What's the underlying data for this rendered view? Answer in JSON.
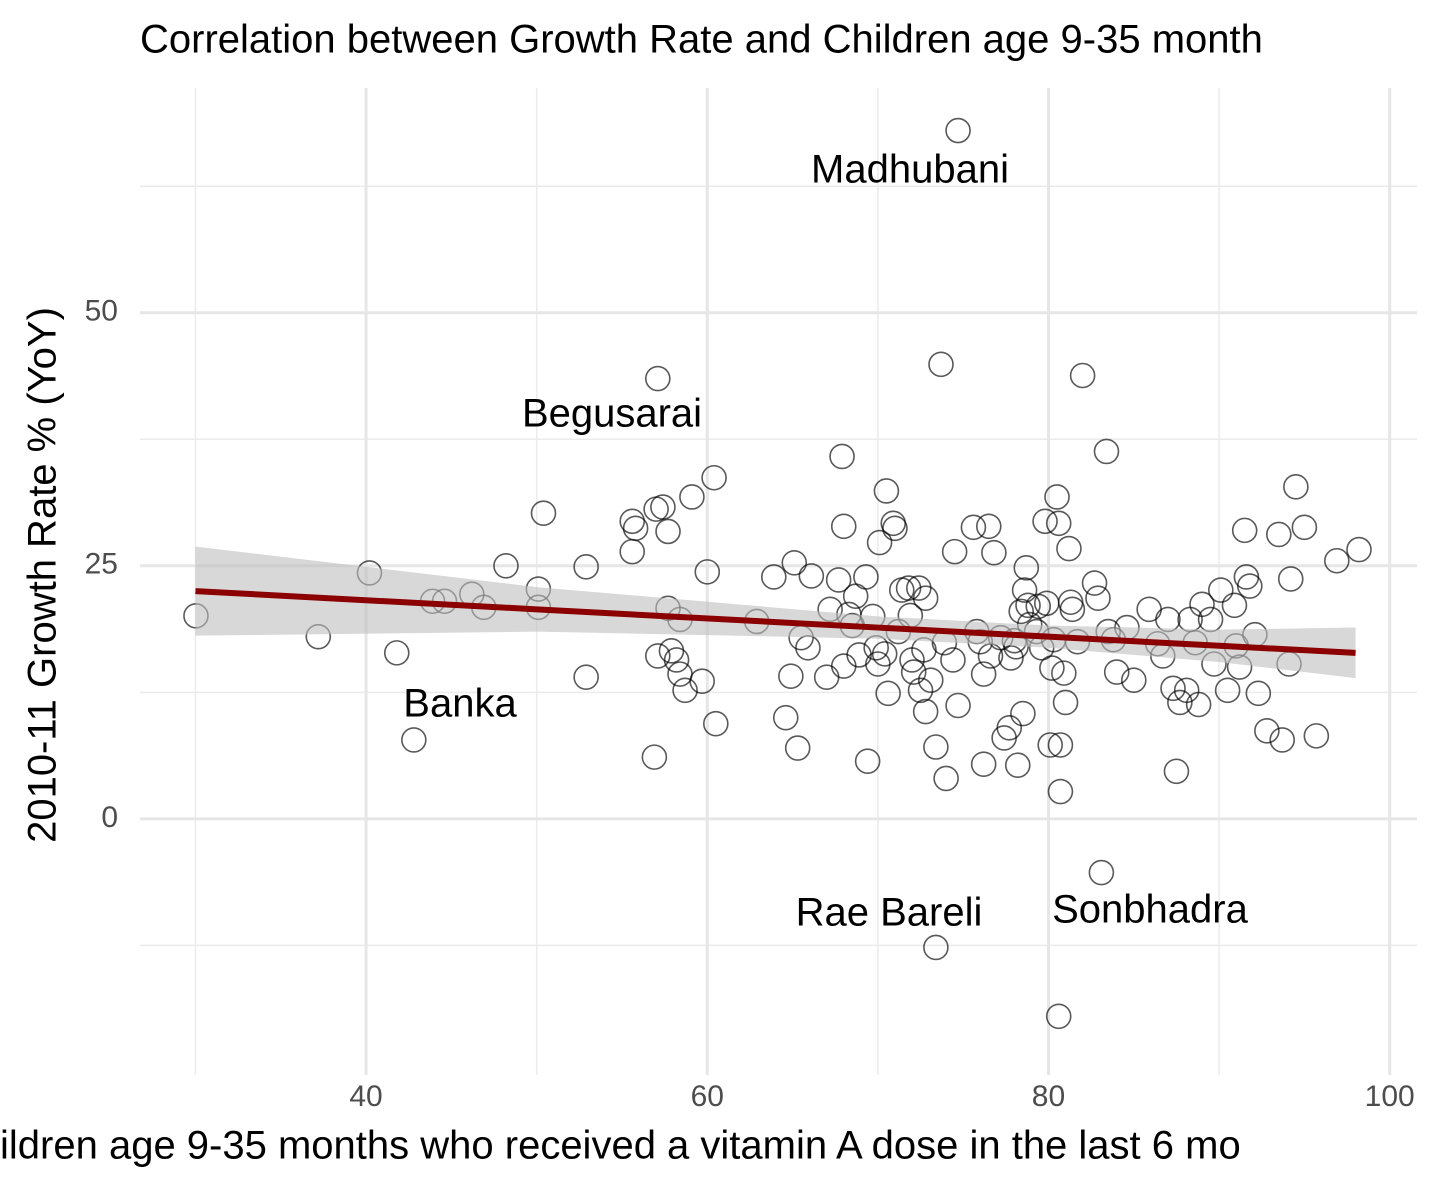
{
  "chart_data": {
    "type": "scatter",
    "title": "Correlation between Growth Rate and Children age 9-35 month",
    "x_label": "ildren age 9-35 months who received a vitamin A dose in the last 6 mo",
    "y_label": "2010-11 Growth Rate % (YoY)",
    "xlim": [
      26.75,
      101.6
    ],
    "ylim": [
      -25.3,
      72.2
    ],
    "xticks": [
      40,
      60,
      80,
      100
    ],
    "yticks": [
      0,
      25,
      50
    ],
    "x_minor_grid": [
      30,
      50,
      70,
      90
    ],
    "y_minor_grid": [
      -12.5,
      12.5,
      37.5,
      62.5
    ],
    "grid": true,
    "series": [
      {
        "color": "#000000",
        "x": [
          30.03,
          37.2,
          40.2,
          41.8,
          42.8,
          43.9,
          44.6,
          46.2,
          46.9,
          48.2,
          50.1,
          50.1,
          50.4,
          52.9,
          52.9,
          55.6,
          55.6,
          55.8,
          56.9,
          57.1,
          57.0,
          57.4,
          57.1,
          57.7,
          57.7,
          57.9,
          58.2,
          58.4,
          58.4,
          58.7,
          59.1,
          59.7,
          60.0,
          60.4,
          60.5,
          62.9,
          63.9,
          64.6,
          64.9,
          65.1,
          65.3,
          65.5,
          65.9,
          66.1,
          67.0,
          67.2,
          67.7,
          67.9,
          68.0,
          68.0,
          68.3,
          68.5,
          68.7,
          68.9,
          69.3,
          69.4,
          69.7,
          69.9,
          70.0,
          70.1,
          70.4,
          70.5,
          70.6,
          70.9,
          71.0,
          71.2,
          71.4,
          71.8,
          71.9,
          72.0,
          72.1,
          72.4,
          72.5,
          72.7,
          72.8,
          72.8,
          73.1,
          73.4,
          73.4,
          73.7,
          73.9,
          74.0,
          74.4,
          74.5,
          74.7,
          74.7,
          75.6,
          75.8,
          76.0,
          76.2,
          76.2,
          76.5,
          76.6,
          76.8,
          77.2,
          77.4,
          77.7,
          77.8,
          78.0,
          78.1,
          78.2,
          78.4,
          78.5,
          78.6,
          78.7,
          78.8,
          78.9,
          79.3,
          79.4,
          79.6,
          79.8,
          79.9,
          80.1,
          80.2,
          80.3,
          80.5,
          80.6,
          80.7,
          80.6,
          80.7,
          80.9,
          81.0,
          81.2,
          81.3,
          81.4,
          81.7,
          82.0,
          82.7,
          82.9,
          83.1,
          83.4,
          83.5,
          83.8,
          84.0,
          84.6,
          85.0,
          85.9,
          86.4,
          86.7,
          87.0,
          87.3,
          87.5,
          87.7,
          88.1,
          88.3,
          88.6,
          88.8,
          89.0,
          89.5,
          89.7,
          90.1,
          90.5,
          90.9,
          91.0,
          91.2,
          91.5,
          91.6,
          91.8,
          92.1,
          92.3,
          92.8,
          93.5,
          93.7,
          94.1,
          94.2,
          94.5,
          95.0,
          95.7,
          96.9,
          98.2
        ],
        "y": [
          20.06,
          18.0,
          24.3,
          16.4,
          7.8,
          21.5,
          21.5,
          22.2,
          20.9,
          25.0,
          22.7,
          20.9,
          30.2,
          24.9,
          14.0,
          29.4,
          26.4,
          28.7,
          6.1,
          43.5,
          30.6,
          30.8,
          16.1,
          28.4,
          20.8,
          16.6,
          15.7,
          19.7,
          14.3,
          12.7,
          31.8,
          13.6,
          24.4,
          33.7,
          9.4,
          19.5,
          23.9,
          10.0,
          14.1,
          25.3,
          7.0,
          17.9,
          16.9,
          24.0,
          14.0,
          20.7,
          23.6,
          35.8,
          28.9,
          15.1,
          20.2,
          19.1,
          22.0,
          16.2,
          23.9,
          5.7,
          20.0,
          16.9,
          15.3,
          27.3,
          16.3,
          32.4,
          12.4,
          29.2,
          28.7,
          18.5,
          22.6,
          22.8,
          20.1,
          15.7,
          14.5,
          22.8,
          12.7,
          16.7,
          21.8,
          10.6,
          13.7,
          7.1,
          -12.7,
          44.9,
          17.4,
          4.0,
          15.7,
          26.4,
          68.0,
          11.2,
          28.8,
          18.5,
          17.5,
          14.3,
          5.4,
          28.9,
          16.1,
          26.3,
          17.9,
          8.0,
          9.0,
          15.9,
          17.6,
          17.0,
          5.3,
          20.5,
          10.4,
          22.6,
          24.8,
          21.1,
          19.2,
          18.5,
          21.0,
          16.9,
          29.4,
          21.3,
          7.3,
          14.9,
          17.7,
          31.8,
          29.2,
          2.7,
          -19.5,
          7.3,
          14.4,
          11.5,
          26.7,
          21.4,
          20.7,
          17.5,
          43.8,
          23.3,
          21.8,
          -5.3,
          36.3,
          18.5,
          17.7,
          14.5,
          18.9,
          13.7,
          20.7,
          17.3,
          16.1,
          19.7,
          12.9,
          4.7,
          11.5,
          12.7,
          19.7,
          17.4,
          11.3,
          21.2,
          19.7,
          15.3,
          22.6,
          12.7,
          21.1,
          17.1,
          15.0,
          28.5,
          23.9,
          23.0,
          18.2,
          12.4,
          8.7,
          28.1,
          7.8,
          15.3,
          23.7,
          32.8,
          28.8,
          8.2,
          25.5,
          26.6
        ]
      }
    ],
    "trend": {
      "color": "#8b0000",
      "band_color": "#bebebe",
      "x": [
        30,
        50,
        70,
        80,
        90,
        98
      ],
      "y": [
        22.5,
        20.7,
        18.9,
        18.0,
        17.1,
        16.4
      ],
      "lower": [
        18.1,
        18.5,
        17.8,
        16.9,
        15.5,
        13.9
      ],
      "upper": [
        26.9,
        22.9,
        20.0,
        19.1,
        18.7,
        18.9
      ]
    },
    "annotations": [
      "Madhubani",
      "Begusarai",
      "Banka",
      "Rae Bareli",
      "Sonbhadra"
    ]
  }
}
